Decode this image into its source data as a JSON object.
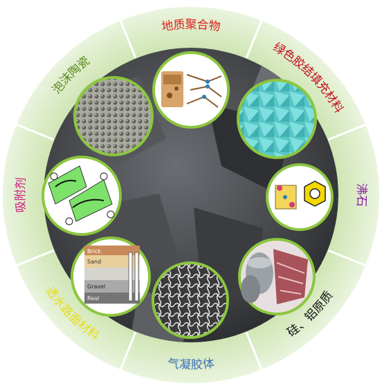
{
  "segments": [
    {
      "id": "geopolymer",
      "label": "地质聚合物",
      "color": "#e0201b"
    },
    {
      "id": "green-binder",
      "label": "绿色胶结填充材料",
      "color": "#c40e1a"
    },
    {
      "id": "zeolite",
      "label": "沸石",
      "color": "#8a1fa6"
    },
    {
      "id": "silicon-aluminum",
      "label": "硅、铝原质",
      "color": "#111111"
    },
    {
      "id": "aerogel",
      "label": "气凝胶体",
      "color": "#3b6fb5"
    },
    {
      "id": "permeable-reactive-barrier",
      "label": "透水路面材料",
      "color": "#e8dd18"
    },
    {
      "id": "adsorbent",
      "label": "吸附剂",
      "color": "#d21a7d"
    },
    {
      "id": "foam-ceramic",
      "label": "泡沫陶瓷",
      "color": "#5a8a1c"
    }
  ],
  "layer_labels": [
    "Brick",
    "Sand",
    "Gravel",
    "Real"
  ],
  "colors": {
    "ring_outer": "#e4f1d6",
    "ring_inner": "#c6e0a5",
    "divider": "#ffffff",
    "bubble_border": "#8cc63f",
    "background_rock": "#3b3d40"
  }
}
